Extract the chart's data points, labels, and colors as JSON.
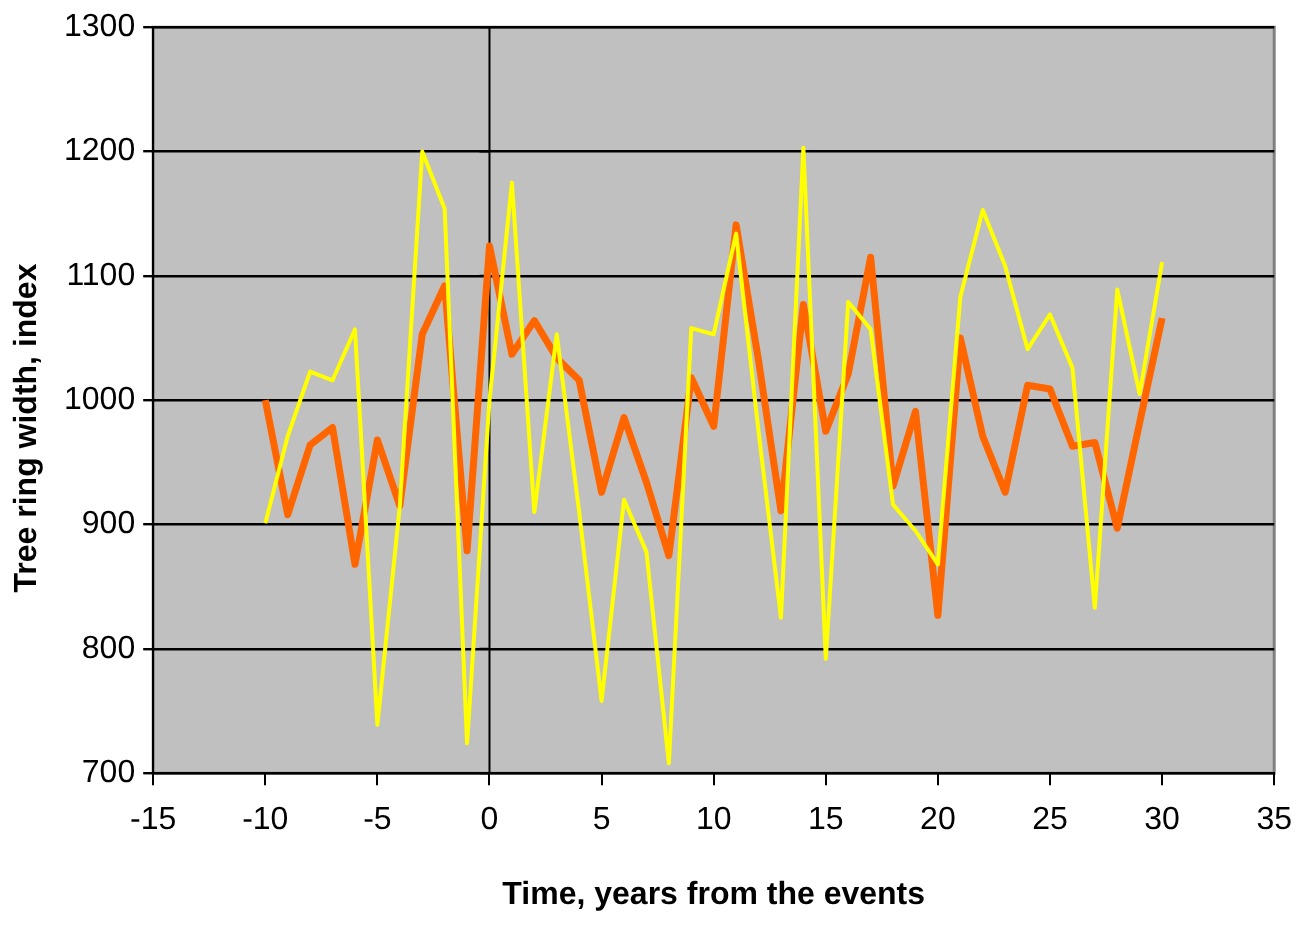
{
  "chart_data": {
    "type": "line",
    "xlabel": "Time, years from the events",
    "ylabel": "Tree ring width, index",
    "x": [
      -10,
      -9,
      -8,
      -7,
      -6,
      -5,
      -4,
      -3,
      -2,
      -1,
      0,
      1,
      2,
      3,
      4,
      5,
      6,
      7,
      8,
      9,
      10,
      11,
      12,
      13,
      14,
      15,
      16,
      17,
      18,
      19,
      20,
      21,
      22,
      23,
      24,
      25,
      26,
      27,
      28,
      29,
      30
    ],
    "series": [
      {
        "color": "#ff6600",
        "values": [
          1000,
          908,
          964,
          978,
          868,
          968,
          915,
          1053,
          1092,
          879,
          1124,
          1037,
          1064,
          1034,
          1016,
          926,
          986,
          934,
          875,
          1018,
          979,
          1141,
          1032,
          911,
          1077,
          975,
          1021,
          1115,
          931,
          991,
          827,
          1050,
          971,
          926,
          1012,
          1009,
          963,
          966,
          897,
          982,
          1066
        ]
      },
      {
        "color": "#ffff00",
        "values": [
          901,
          971,
          1023,
          1016,
          1057,
          739,
          915,
          1200,
          1154,
          724,
          1000,
          1175,
          910,
          1053,
          910,
          758,
          920,
          878,
          708,
          1058,
          1053,
          1134,
          975,
          825,
          1203,
          792,
          1079,
          1057,
          916,
          895,
          868,
          1083,
          1153,
          1108,
          1041,
          1069,
          1026,
          833,
          1089,
          1005,
          1111
        ]
      }
    ],
    "xlim": [
      -15,
      35
    ],
    "xticks": [
      -15,
      -10,
      -5,
      0,
      5,
      10,
      15,
      20,
      25,
      30,
      35
    ],
    "ylim": [
      700,
      1300
    ],
    "yticks": [
      700,
      800,
      900,
      1000,
      1100,
      1200,
      1300
    ],
    "grid": "y",
    "legend": false,
    "marker": "none",
    "line_style": "solid"
  }
}
